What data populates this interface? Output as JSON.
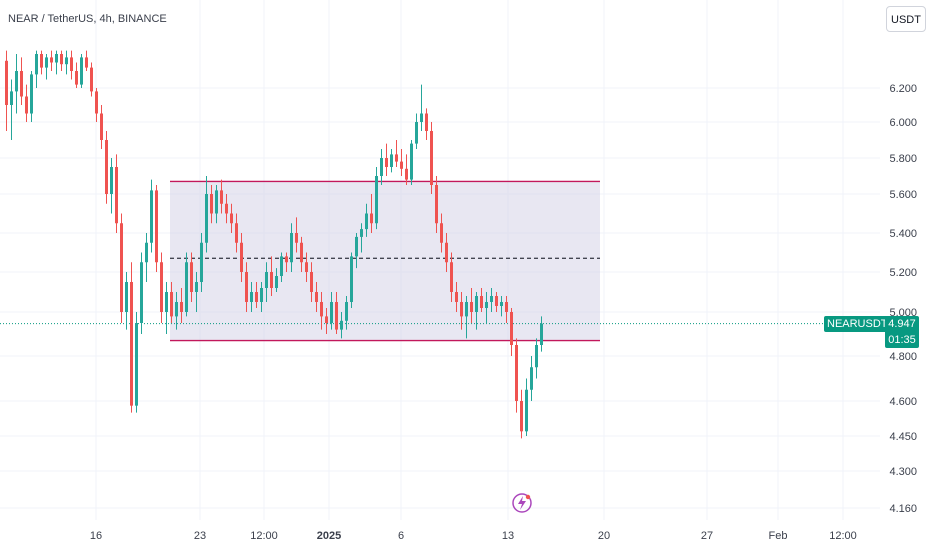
{
  "chart_data": {
    "type": "candlestick",
    "title": "NEAR / TetherUS, 4h, BINANCE",
    "currency_button": "USDT",
    "symbol_label": "NEARUSDT",
    "last_price": "4.947",
    "countdown": "01:35",
    "y_ticks": [
      "6.200",
      "6.000",
      "5.800",
      "5.600",
      "5.400",
      "5.200",
      "5.000",
      "4.800",
      "4.600",
      "4.450",
      "4.300",
      "4.160"
    ],
    "x_ticks": [
      "16",
      "23",
      "12:00",
      "2025",
      "6",
      "13",
      "20",
      "27",
      "Feb",
      "12:00"
    ],
    "colors": {
      "up": "#26a69a",
      "down": "#ef5350",
      "range_box": "#d6d3e8",
      "range_line": "#c2185b",
      "accent": "#089981"
    },
    "range_box": {
      "top": 5.67,
      "bottom": 4.87,
      "midline": 5.27
    },
    "candles": [
      {
        "o": 6.36,
        "h": 6.42,
        "l": 5.95,
        "c": 6.1
      },
      {
        "o": 6.1,
        "h": 6.25,
        "l": 5.9,
        "c": 6.18
      },
      {
        "o": 6.18,
        "h": 6.4,
        "l": 6.05,
        "c": 6.3
      },
      {
        "o": 6.3,
        "h": 6.38,
        "l": 6.1,
        "c": 6.15
      },
      {
        "o": 6.15,
        "h": 6.22,
        "l": 6.0,
        "c": 6.05
      },
      {
        "o": 6.05,
        "h": 6.3,
        "l": 6.0,
        "c": 6.28
      },
      {
        "o": 6.28,
        "h": 6.42,
        "l": 6.2,
        "c": 6.4
      },
      {
        "o": 6.4,
        "h": 6.42,
        "l": 6.28,
        "c": 6.32
      },
      {
        "o": 6.32,
        "h": 6.4,
        "l": 6.25,
        "c": 6.38
      },
      {
        "o": 6.38,
        "h": 6.42,
        "l": 6.3,
        "c": 6.35
      },
      {
        "o": 6.35,
        "h": 6.42,
        "l": 6.28,
        "c": 6.4
      },
      {
        "o": 6.4,
        "h": 6.42,
        "l": 6.3,
        "c": 6.34
      },
      {
        "o": 6.34,
        "h": 6.42,
        "l": 6.28,
        "c": 6.38
      },
      {
        "o": 6.38,
        "h": 6.42,
        "l": 6.25,
        "c": 6.3
      },
      {
        "o": 6.3,
        "h": 6.35,
        "l": 6.2,
        "c": 6.22
      },
      {
        "o": 6.22,
        "h": 6.4,
        "l": 6.2,
        "c": 6.38
      },
      {
        "o": 6.38,
        "h": 6.42,
        "l": 6.3,
        "c": 6.32
      },
      {
        "o": 6.32,
        "h": 6.35,
        "l": 6.15,
        "c": 6.18
      },
      {
        "o": 6.18,
        "h": 6.2,
        "l": 6.0,
        "c": 6.05
      },
      {
        "o": 6.05,
        "h": 6.1,
        "l": 5.85,
        "c": 5.9
      },
      {
        "o": 5.9,
        "h": 5.95,
        "l": 5.55,
        "c": 5.6
      },
      {
        "o": 5.6,
        "h": 5.8,
        "l": 5.5,
        "c": 5.75
      },
      {
        "o": 5.75,
        "h": 5.82,
        "l": 5.4,
        "c": 5.45
      },
      {
        "o": 5.45,
        "h": 5.5,
        "l": 4.95,
        "c": 5.0
      },
      {
        "o": 5.0,
        "h": 5.2,
        "l": 4.92,
        "c": 5.15
      },
      {
        "o": 5.15,
        "h": 5.25,
        "l": 4.55,
        "c": 4.58
      },
      {
        "o": 4.58,
        "h": 5.0,
        "l": 4.55,
        "c": 4.95
      },
      {
        "o": 4.95,
        "h": 5.3,
        "l": 4.9,
        "c": 5.25
      },
      {
        "o": 5.25,
        "h": 5.4,
        "l": 5.15,
        "c": 5.35
      },
      {
        "o": 5.35,
        "h": 5.68,
        "l": 5.3,
        "c": 5.62
      },
      {
        "o": 5.62,
        "h": 5.65,
        "l": 5.2,
        "c": 5.25
      },
      {
        "o": 5.25,
        "h": 5.3,
        "l": 4.95,
        "c": 5.0
      },
      {
        "o": 5.0,
        "h": 5.15,
        "l": 4.9,
        "c": 5.1
      },
      {
        "o": 5.1,
        "h": 5.15,
        "l": 4.95,
        "c": 4.98
      },
      {
        "o": 4.98,
        "h": 5.1,
        "l": 4.92,
        "c": 5.05
      },
      {
        "o": 5.05,
        "h": 5.12,
        "l": 4.95,
        "c": 5.0
      },
      {
        "o": 5.0,
        "h": 5.3,
        "l": 4.98,
        "c": 5.25
      },
      {
        "o": 5.25,
        "h": 5.3,
        "l": 5.05,
        "c": 5.1
      },
      {
        "o": 5.1,
        "h": 5.2,
        "l": 5.0,
        "c": 5.15
      },
      {
        "o": 5.15,
        "h": 5.4,
        "l": 5.1,
        "c": 5.35
      },
      {
        "o": 5.35,
        "h": 5.7,
        "l": 5.3,
        "c": 5.6
      },
      {
        "o": 5.6,
        "h": 5.65,
        "l": 5.45,
        "c": 5.5
      },
      {
        "o": 5.5,
        "h": 5.65,
        "l": 5.45,
        "c": 5.62
      },
      {
        "o": 5.62,
        "h": 5.68,
        "l": 5.5,
        "c": 5.55
      },
      {
        "o": 5.55,
        "h": 5.6,
        "l": 5.45,
        "c": 5.5
      },
      {
        "o": 5.5,
        "h": 5.55,
        "l": 5.4,
        "c": 5.45
      },
      {
        "o": 5.45,
        "h": 5.5,
        "l": 5.3,
        "c": 5.35
      },
      {
        "o": 5.35,
        "h": 5.4,
        "l": 5.15,
        "c": 5.2
      },
      {
        "o": 5.2,
        "h": 5.25,
        "l": 5.0,
        "c": 5.05
      },
      {
        "o": 5.05,
        "h": 5.15,
        "l": 5.0,
        "c": 5.1
      },
      {
        "o": 5.1,
        "h": 5.15,
        "l": 5.02,
        "c": 5.05
      },
      {
        "o": 5.05,
        "h": 5.15,
        "l": 5.0,
        "c": 5.12
      },
      {
        "o": 5.12,
        "h": 5.25,
        "l": 5.05,
        "c": 5.2
      },
      {
        "o": 5.2,
        "h": 5.28,
        "l": 5.08,
        "c": 5.12
      },
      {
        "o": 5.12,
        "h": 5.22,
        "l": 5.1,
        "c": 5.18
      },
      {
        "o": 5.18,
        "h": 5.3,
        "l": 5.15,
        "c": 5.28
      },
      {
        "o": 5.28,
        "h": 5.3,
        "l": 5.2,
        "c": 5.25
      },
      {
        "o": 5.25,
        "h": 5.45,
        "l": 5.2,
        "c": 5.4
      },
      {
        "o": 5.4,
        "h": 5.48,
        "l": 5.3,
        "c": 5.35
      },
      {
        "o": 5.35,
        "h": 5.38,
        "l": 5.2,
        "c": 5.25
      },
      {
        "o": 5.25,
        "h": 5.3,
        "l": 5.15,
        "c": 5.2
      },
      {
        "o": 5.2,
        "h": 5.25,
        "l": 5.05,
        "c": 5.1
      },
      {
        "o": 5.1,
        "h": 5.15,
        "l": 5.0,
        "c": 5.05
      },
      {
        "o": 5.05,
        "h": 5.1,
        "l": 4.92,
        "c": 4.98
      },
      {
        "o": 4.98,
        "h": 5.02,
        "l": 4.9,
        "c": 4.95
      },
      {
        "o": 4.95,
        "h": 5.1,
        "l": 4.92,
        "c": 5.05
      },
      {
        "o": 5.05,
        "h": 5.1,
        "l": 4.9,
        "c": 4.92
      },
      {
        "o": 4.92,
        "h": 5.0,
        "l": 4.88,
        "c": 4.96
      },
      {
        "o": 4.96,
        "h": 5.08,
        "l": 4.92,
        "c": 5.05
      },
      {
        "o": 5.05,
        "h": 5.3,
        "l": 5.02,
        "c": 5.28
      },
      {
        "o": 5.28,
        "h": 5.4,
        "l": 5.22,
        "c": 5.38
      },
      {
        "o": 5.38,
        "h": 5.45,
        "l": 5.3,
        "c": 5.42
      },
      {
        "o": 5.42,
        "h": 5.55,
        "l": 5.38,
        "c": 5.5
      },
      {
        "o": 5.5,
        "h": 5.6,
        "l": 5.4,
        "c": 5.45
      },
      {
        "o": 5.45,
        "h": 5.75,
        "l": 5.42,
        "c": 5.7
      },
      {
        "o": 5.7,
        "h": 5.85,
        "l": 5.65,
        "c": 5.8
      },
      {
        "o": 5.8,
        "h": 5.88,
        "l": 5.7,
        "c": 5.75
      },
      {
        "o": 5.75,
        "h": 5.85,
        "l": 5.72,
        "c": 5.82
      },
      {
        "o": 5.82,
        "h": 5.9,
        "l": 5.75,
        "c": 5.78
      },
      {
        "o": 5.78,
        "h": 5.85,
        "l": 5.7,
        "c": 5.74
      },
      {
        "o": 5.74,
        "h": 5.82,
        "l": 5.65,
        "c": 5.68
      },
      {
        "o": 5.68,
        "h": 5.9,
        "l": 5.65,
        "c": 5.88
      },
      {
        "o": 5.88,
        "h": 6.05,
        "l": 5.85,
        "c": 6.0
      },
      {
        "o": 6.0,
        "h": 6.22,
        "l": 5.95,
        "c": 6.05
      },
      {
        "o": 6.05,
        "h": 6.08,
        "l": 5.9,
        "c": 5.95
      },
      {
        "o": 5.95,
        "h": 6.0,
        "l": 5.6,
        "c": 5.65
      },
      {
        "o": 5.65,
        "h": 5.7,
        "l": 5.4,
        "c": 5.45
      },
      {
        "o": 5.45,
        "h": 5.5,
        "l": 5.3,
        "c": 5.35
      },
      {
        "o": 5.35,
        "h": 5.4,
        "l": 5.2,
        "c": 5.25
      },
      {
        "o": 5.25,
        "h": 5.3,
        "l": 5.05,
        "c": 5.1
      },
      {
        "o": 5.1,
        "h": 5.15,
        "l": 5.0,
        "c": 5.05
      },
      {
        "o": 5.05,
        "h": 5.1,
        "l": 4.92,
        "c": 4.98
      },
      {
        "o": 4.98,
        "h": 5.08,
        "l": 4.88,
        "c": 5.05
      },
      {
        "o": 5.05,
        "h": 5.12,
        "l": 4.95,
        "c": 5.0
      },
      {
        "o": 5.0,
        "h": 5.1,
        "l": 4.92,
        "c": 5.08
      },
      {
        "o": 5.08,
        "h": 5.12,
        "l": 5.0,
        "c": 5.02
      },
      {
        "o": 5.02,
        "h": 5.1,
        "l": 4.95,
        "c": 5.05
      },
      {
        "o": 5.05,
        "h": 5.12,
        "l": 5.0,
        "c": 5.08
      },
      {
        "o": 5.08,
        "h": 5.1,
        "l": 5.0,
        "c": 5.03
      },
      {
        "o": 5.03,
        "h": 5.08,
        "l": 4.98,
        "c": 5.05
      },
      {
        "o": 5.05,
        "h": 5.08,
        "l": 4.95,
        "c": 5.0
      },
      {
        "o": 5.0,
        "h": 5.02,
        "l": 4.8,
        "c": 4.85
      },
      {
        "o": 4.85,
        "h": 4.88,
        "l": 4.55,
        "c": 4.6
      },
      {
        "o": 4.6,
        "h": 4.65,
        "l": 4.44,
        "c": 4.47
      },
      {
        "o": 4.47,
        "h": 4.7,
        "l": 4.45,
        "c": 4.65
      },
      {
        "o": 4.65,
        "h": 4.8,
        "l": 4.6,
        "c": 4.75
      },
      {
        "o": 4.75,
        "h": 4.88,
        "l": 4.7,
        "c": 4.85
      },
      {
        "o": 4.85,
        "h": 4.98,
        "l": 4.82,
        "c": 4.947
      }
    ]
  }
}
